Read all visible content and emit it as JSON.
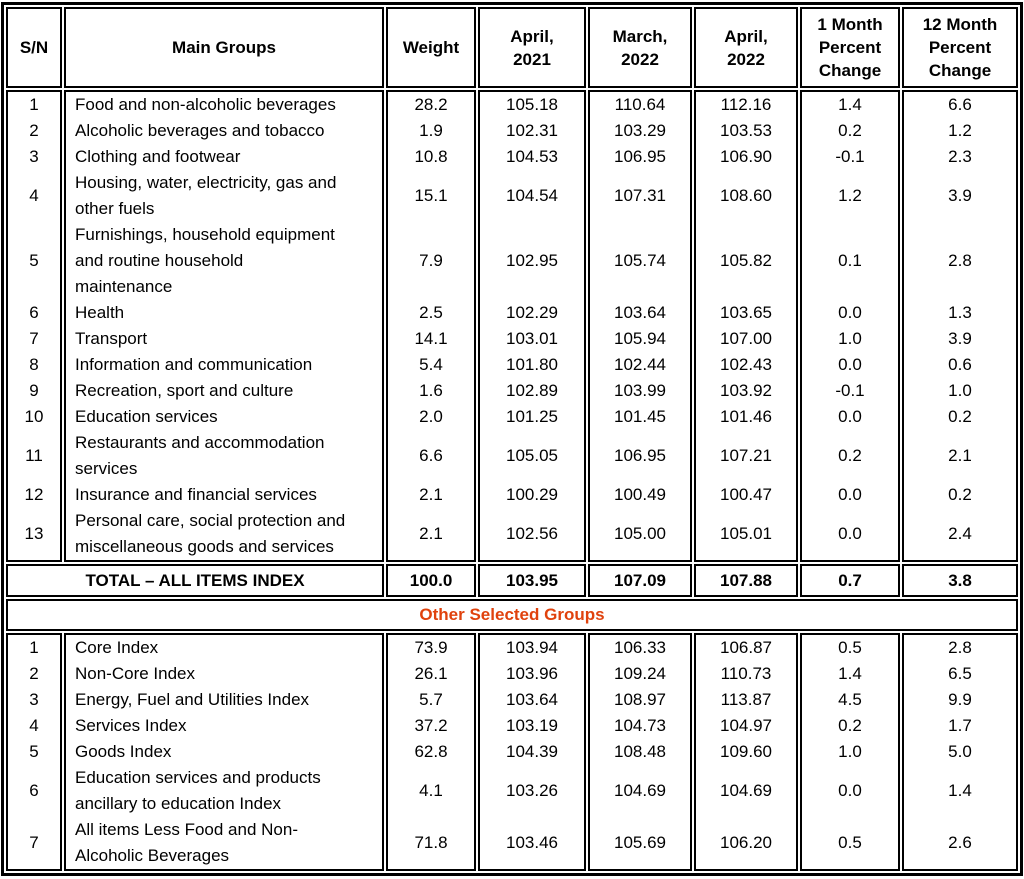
{
  "colors": {
    "band_text": "#E0420D",
    "border": "#000000"
  },
  "table": {
    "headers": [
      "S/N",
      "Main Groups",
      "Weight",
      "April,\n2021",
      "March,\n2022",
      "April,\n2022",
      "1 Month\nPercent\nChange",
      "12 Month\nPercent\nChange"
    ],
    "main_groups": {
      "rows": [
        {
          "sn": "1",
          "name": "Food and non-alcoholic beverages",
          "weight": "28.2",
          "apr_2021": "105.18",
          "mar_2022": "110.64",
          "apr_2022": "112.16",
          "one_month_change": "1.4",
          "twelve_month_change": "6.6"
        },
        {
          "sn": "2",
          "name": "Alcoholic beverages and tobacco",
          "weight": "1.9",
          "apr_2021": "102.31",
          "mar_2022": "103.29",
          "apr_2022": "103.53",
          "one_month_change": "0.2",
          "twelve_month_change": "1.2"
        },
        {
          "sn": "3",
          "name": "Clothing and footwear",
          "weight": "10.8",
          "apr_2021": "104.53",
          "mar_2022": "106.95",
          "apr_2022": "106.90",
          "one_month_change": "-0.1",
          "twelve_month_change": "2.3"
        },
        {
          "sn": "4",
          "name": "Housing, water, electricity, gas and\nother fuels",
          "weight": "15.1",
          "apr_2021": "104.54",
          "mar_2022": "107.31",
          "apr_2022": "108.60",
          "one_month_change": "1.2",
          "twelve_month_change": "3.9"
        },
        {
          "sn": "5",
          "name": "Furnishings, household equipment\nand routine household\nmaintenance",
          "weight": "7.9",
          "apr_2021": "102.95",
          "mar_2022": "105.74",
          "apr_2022": "105.82",
          "one_month_change": "0.1",
          "twelve_month_change": "2.8"
        },
        {
          "sn": "6",
          "name": "Health",
          "weight": "2.5",
          "apr_2021": "102.29",
          "mar_2022": "103.64",
          "apr_2022": "103.65",
          "one_month_change": "0.0",
          "twelve_month_change": "1.3"
        },
        {
          "sn": "7",
          "name": "Transport",
          "weight": "14.1",
          "apr_2021": "103.01",
          "mar_2022": "105.94",
          "apr_2022": "107.00",
          "one_month_change": "1.0",
          "twelve_month_change": "3.9"
        },
        {
          "sn": "8",
          "name": "Information and communication",
          "weight": "5.4",
          "apr_2021": "101.80",
          "mar_2022": "102.44",
          "apr_2022": "102.43",
          "one_month_change": "0.0",
          "twelve_month_change": "0.6"
        },
        {
          "sn": "9",
          "name": "Recreation, sport and culture",
          "weight": "1.6",
          "apr_2021": "102.89",
          "mar_2022": "103.99",
          "apr_2022": "103.92",
          "one_month_change": "-0.1",
          "twelve_month_change": "1.0"
        },
        {
          "sn": "10",
          "name": "Education services",
          "weight": "2.0",
          "apr_2021": "101.25",
          "mar_2022": "101.45",
          "apr_2022": "101.46",
          "one_month_change": "0.0",
          "twelve_month_change": "0.2"
        },
        {
          "sn": "11",
          "name": "Restaurants and accommodation\nservices",
          "weight": "6.6",
          "apr_2021": "105.05",
          "mar_2022": "106.95",
          "apr_2022": "107.21",
          "one_month_change": "0.2",
          "twelve_month_change": "2.1"
        },
        {
          "sn": "12",
          "name": "Insurance and financial services",
          "weight": "2.1",
          "apr_2021": "100.29",
          "mar_2022": "100.49",
          "apr_2022": "100.47",
          "one_month_change": "0.0",
          "twelve_month_change": "0.2"
        },
        {
          "sn": "13",
          "name": "Personal care, social protection and\nmiscellaneous goods and services",
          "weight": "2.1",
          "apr_2021": "102.56",
          "mar_2022": "105.00",
          "apr_2022": "105.01",
          "one_month_change": "0.0",
          "twelve_month_change": "2.4"
        }
      ]
    },
    "total_row": {
      "label": "TOTAL – ALL ITEMS INDEX",
      "weight": "100.0",
      "apr_2021": "103.95",
      "mar_2022": "107.09",
      "apr_2022": "107.88",
      "one_month_change": "0.7",
      "twelve_month_change": "3.8"
    },
    "section_band": {
      "label": "Other Selected Groups"
    },
    "other_groups": {
      "rows": [
        {
          "sn": "1",
          "name": "Core Index",
          "weight": "73.9",
          "apr_2021": "103.94",
          "mar_2022": "106.33",
          "apr_2022": "106.87",
          "one_month_change": "0.5",
          "twelve_month_change": "2.8"
        },
        {
          "sn": "2",
          "name": "Non-Core Index",
          "weight": "26.1",
          "apr_2021": "103.96",
          "mar_2022": "109.24",
          "apr_2022": "110.73",
          "one_month_change": "1.4",
          "twelve_month_change": "6.5"
        },
        {
          "sn": "3",
          "name": "Energy, Fuel and Utilities Index",
          "weight": "5.7",
          "apr_2021": "103.64",
          "mar_2022": "108.97",
          "apr_2022": "113.87",
          "one_month_change": "4.5",
          "twelve_month_change": "9.9"
        },
        {
          "sn": "4",
          "name": "Services Index",
          "weight": "37.2",
          "apr_2021": "103.19",
          "mar_2022": "104.73",
          "apr_2022": "104.97",
          "one_month_change": "0.2",
          "twelve_month_change": "1.7"
        },
        {
          "sn": "5",
          "name": "Goods Index",
          "weight": "62.8",
          "apr_2021": "104.39",
          "mar_2022": "108.48",
          "apr_2022": "109.60",
          "one_month_change": "1.0",
          "twelve_month_change": "5.0"
        },
        {
          "sn": "6",
          "name": "Education services and products\nancillary to education Index",
          "weight": "4.1",
          "apr_2021": "103.26",
          "mar_2022": "104.69",
          "apr_2022": "104.69",
          "one_month_change": "0.0",
          "twelve_month_change": "1.4"
        },
        {
          "sn": "7",
          "name": "All items Less Food and Non-\nAlcoholic Beverages",
          "weight": "71.8",
          "apr_2021": "103.46",
          "mar_2022": "105.69",
          "apr_2022": "106.20",
          "one_month_change": "0.5",
          "twelve_month_change": "2.6"
        }
      ]
    }
  }
}
